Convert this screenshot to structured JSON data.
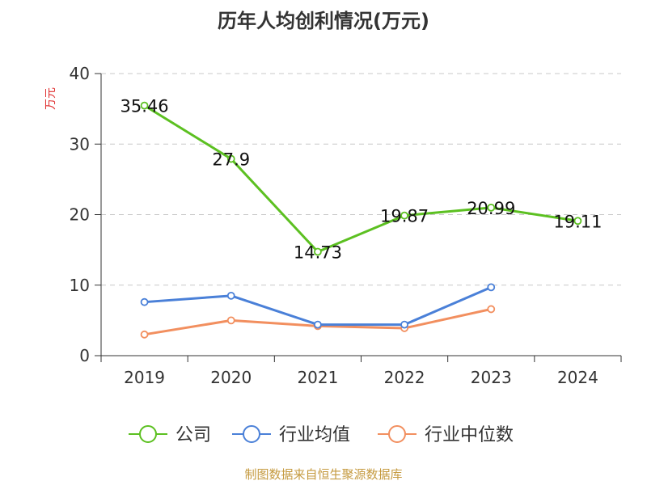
{
  "chart_data": {
    "type": "line",
    "title": "历年人均创利情况(万元)",
    "ylabel": "万元",
    "xlabel": "",
    "categories": [
      "2019",
      "2020",
      "2021",
      "2022",
      "2023",
      "2024"
    ],
    "ylim": [
      0,
      40
    ],
    "yticks": [
      "0",
      "10",
      "20",
      "30",
      "40"
    ],
    "grid": true,
    "legend_position": "bottom",
    "series": [
      {
        "name": "公司",
        "color": "#5cc021",
        "values": [
          35.46,
          27.9,
          14.73,
          19.87,
          20.99,
          19.11
        ],
        "labels": [
          "35.46",
          "27.9",
          "14.73",
          "19.87",
          "20.99",
          "19.11"
        ]
      },
      {
        "name": "行业均值",
        "color": "#4a80d8",
        "values": [
          7.6,
          8.5,
          4.4,
          4.4,
          9.7,
          null
        ]
      },
      {
        "name": "行业中位数",
        "color": "#f28f5f",
        "values": [
          3.0,
          5.0,
          4.2,
          3.9,
          6.6,
          null
        ]
      }
    ]
  },
  "source": "制图数据来自恒生聚源数据库"
}
